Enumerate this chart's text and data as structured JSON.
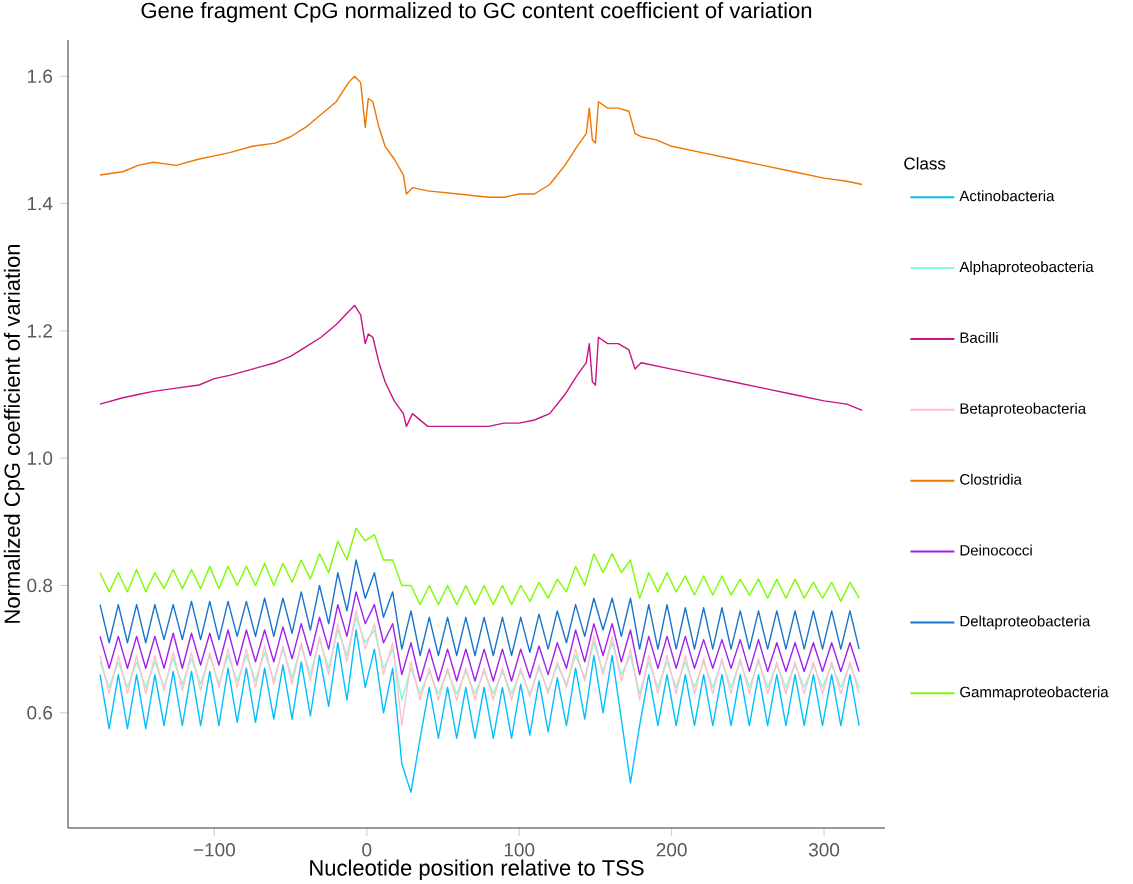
{
  "chart_data": {
    "type": "line",
    "title": "Gene fragment CpG normalized to GC content coefficient of variation",
    "xlabel": "Nucleotide position relative to TSS",
    "ylabel": "Normalized CpG coefficient of variation",
    "legend_title": "Class",
    "legend": "right",
    "line_style": "solid",
    "marker": "none",
    "xlim": [
      -196,
      340
    ],
    "ylim": [
      0.419,
      1.657
    ],
    "xticks": [
      {
        "value": -100,
        "label": "−100"
      },
      0,
      100,
      200,
      300
    ],
    "yticks": [
      0.6,
      0.8,
      {
        "value": 1.0,
        "label": "1.0"
      },
      1.2,
      1.4,
      1.6
    ],
    "x": [
      -175,
      -169,
      -163,
      -157,
      -151,
      -145,
      -139,
      -133,
      -127,
      -121,
      -115,
      -109,
      -103,
      -97,
      -91,
      -85,
      -79,
      -73,
      -67,
      -61,
      -55,
      -49,
      -43,
      -37,
      -31,
      -25,
      -19,
      -13,
      -7,
      -1,
      5,
      11,
      17,
      23,
      29,
      35,
      41,
      47,
      53,
      59,
      65,
      71,
      77,
      83,
      89,
      95,
      101,
      107,
      113,
      119,
      125,
      131,
      137,
      143,
      149,
      155,
      161,
      167,
      173,
      179,
      185,
      191,
      197,
      203,
      209,
      215,
      221,
      227,
      233,
      239,
      245,
      251,
      257,
      263,
      269,
      275,
      281,
      287,
      293,
      299,
      305,
      311,
      317,
      323
    ],
    "series": [
      {
        "name": "Actinobacteria",
        "color": "#00bfff",
        "values": [
          0.66,
          0.575,
          0.66,
          0.575,
          0.66,
          0.575,
          0.66,
          0.58,
          0.665,
          0.58,
          0.665,
          0.58,
          0.665,
          0.58,
          0.67,
          0.585,
          0.67,
          0.585,
          0.67,
          0.59,
          0.675,
          0.59,
          0.68,
          0.595,
          0.69,
          0.61,
          0.71,
          0.62,
          0.73,
          0.64,
          0.7,
          0.6,
          0.67,
          0.52,
          0.475,
          0.56,
          0.64,
          0.56,
          0.64,
          0.56,
          0.64,
          0.56,
          0.64,
          0.56,
          0.64,
          0.56,
          0.645,
          0.565,
          0.65,
          0.57,
          0.655,
          0.58,
          0.67,
          0.59,
          0.69,
          0.6,
          0.69,
          0.59,
          0.49,
          0.58,
          0.66,
          0.58,
          0.66,
          0.58,
          0.66,
          0.58,
          0.66,
          0.58,
          0.66,
          0.58,
          0.66,
          0.58,
          0.66,
          0.58,
          0.66,
          0.58,
          0.66,
          0.58,
          0.66,
          0.58,
          0.66,
          0.58,
          0.66,
          0.58
        ]
      },
      {
        "name": "Alphaproteobacteria",
        "color": "#7fffd4",
        "values": [
          0.68,
          0.64,
          0.68,
          0.64,
          0.68,
          0.64,
          0.68,
          0.64,
          0.685,
          0.645,
          0.685,
          0.645,
          0.69,
          0.645,
          0.69,
          0.65,
          0.69,
          0.65,
          0.695,
          0.65,
          0.7,
          0.655,
          0.705,
          0.66,
          0.715,
          0.67,
          0.73,
          0.69,
          0.75,
          0.71,
          0.73,
          0.67,
          0.7,
          0.62,
          0.67,
          0.63,
          0.665,
          0.63,
          0.665,
          0.63,
          0.665,
          0.63,
          0.665,
          0.63,
          0.665,
          0.63,
          0.665,
          0.63,
          0.67,
          0.635,
          0.675,
          0.645,
          0.69,
          0.655,
          0.71,
          0.665,
          0.71,
          0.66,
          0.69,
          0.63,
          0.68,
          0.64,
          0.68,
          0.64,
          0.68,
          0.64,
          0.68,
          0.64,
          0.68,
          0.64,
          0.68,
          0.64,
          0.68,
          0.64,
          0.675,
          0.64,
          0.675,
          0.64,
          0.675,
          0.64,
          0.675,
          0.64,
          0.675,
          0.64
        ]
      },
      {
        "name": "Bacilli",
        "color": "#c71585",
        "x": [
          -175,
          -160,
          -150,
          -140,
          -125,
          -110,
          -100,
          -90,
          -75,
          -60,
          -50,
          -40,
          -30,
          -20,
          -12,
          -8,
          -4,
          -1,
          1,
          4,
          8,
          12,
          18,
          24,
          26,
          30,
          40,
          60,
          80,
          90,
          100,
          110,
          120,
          130,
          138,
          144,
          146,
          148,
          150,
          152,
          158,
          165,
          172,
          176,
          180,
          190,
          200,
          220,
          240,
          260,
          280,
          300,
          315,
          325
        ],
        "values": [
          1.085,
          1.095,
          1.1,
          1.105,
          1.11,
          1.115,
          1.125,
          1.13,
          1.14,
          1.15,
          1.16,
          1.175,
          1.19,
          1.21,
          1.23,
          1.24,
          1.225,
          1.18,
          1.195,
          1.19,
          1.15,
          1.12,
          1.09,
          1.07,
          1.05,
          1.07,
          1.05,
          1.05,
          1.05,
          1.055,
          1.055,
          1.06,
          1.07,
          1.1,
          1.13,
          1.15,
          1.18,
          1.12,
          1.115,
          1.19,
          1.18,
          1.18,
          1.17,
          1.14,
          1.15,
          1.145,
          1.14,
          1.13,
          1.12,
          1.11,
          1.1,
          1.09,
          1.085,
          1.075
        ]
      },
      {
        "name": "Betaproteobacteria",
        "color": "#ffc0cb",
        "values": [
          0.69,
          0.63,
          0.69,
          0.63,
          0.69,
          0.63,
          0.69,
          0.635,
          0.695,
          0.635,
          0.695,
          0.635,
          0.695,
          0.64,
          0.7,
          0.64,
          0.7,
          0.64,
          0.705,
          0.645,
          0.705,
          0.645,
          0.71,
          0.65,
          0.72,
          0.66,
          0.74,
          0.68,
          0.76,
          0.7,
          0.74,
          0.66,
          0.71,
          0.58,
          0.68,
          0.62,
          0.67,
          0.62,
          0.67,
          0.62,
          0.67,
          0.62,
          0.67,
          0.62,
          0.67,
          0.62,
          0.67,
          0.625,
          0.675,
          0.63,
          0.68,
          0.64,
          0.7,
          0.65,
          0.72,
          0.66,
          0.72,
          0.65,
          0.7,
          0.62,
          0.69,
          0.63,
          0.69,
          0.63,
          0.69,
          0.63,
          0.685,
          0.63,
          0.685,
          0.63,
          0.685,
          0.63,
          0.685,
          0.63,
          0.68,
          0.63,
          0.68,
          0.63,
          0.68,
          0.63,
          0.68,
          0.63,
          0.68,
          0.63
        ]
      },
      {
        "name": "Clostridia",
        "color": "#ee7600",
        "x": [
          -175,
          -160,
          -150,
          -140,
          -125,
          -110,
          -100,
          -90,
          -75,
          -60,
          -50,
          -40,
          -30,
          -20,
          -12,
          -8,
          -4,
          -1,
          1,
          4,
          8,
          12,
          18,
          24,
          26,
          30,
          40,
          60,
          80,
          90,
          100,
          110,
          120,
          130,
          138,
          144,
          146,
          148,
          150,
          152,
          158,
          165,
          172,
          176,
          180,
          190,
          200,
          220,
          240,
          260,
          280,
          300,
          315,
          325
        ],
        "values": [
          1.445,
          1.45,
          1.46,
          1.465,
          1.46,
          1.47,
          1.475,
          1.48,
          1.49,
          1.495,
          1.505,
          1.52,
          1.54,
          1.56,
          1.59,
          1.6,
          1.59,
          1.52,
          1.565,
          1.56,
          1.52,
          1.49,
          1.47,
          1.445,
          1.415,
          1.425,
          1.42,
          1.415,
          1.41,
          1.41,
          1.415,
          1.415,
          1.43,
          1.46,
          1.49,
          1.51,
          1.55,
          1.5,
          1.495,
          1.56,
          1.55,
          1.55,
          1.545,
          1.51,
          1.505,
          1.5,
          1.49,
          1.48,
          1.47,
          1.46,
          1.45,
          1.44,
          1.435,
          1.43
        ]
      },
      {
        "name": "Deinococci",
        "color": "#a020f0",
        "values": [
          0.72,
          0.67,
          0.72,
          0.67,
          0.72,
          0.67,
          0.72,
          0.67,
          0.725,
          0.67,
          0.725,
          0.675,
          0.725,
          0.675,
          0.73,
          0.675,
          0.73,
          0.68,
          0.73,
          0.68,
          0.735,
          0.685,
          0.74,
          0.69,
          0.75,
          0.7,
          0.77,
          0.72,
          0.79,
          0.74,
          0.77,
          0.71,
          0.74,
          0.66,
          0.71,
          0.65,
          0.7,
          0.65,
          0.7,
          0.65,
          0.7,
          0.65,
          0.7,
          0.65,
          0.7,
          0.65,
          0.7,
          0.655,
          0.705,
          0.66,
          0.71,
          0.67,
          0.73,
          0.68,
          0.74,
          0.69,
          0.74,
          0.68,
          0.73,
          0.66,
          0.72,
          0.67,
          0.72,
          0.67,
          0.72,
          0.67,
          0.715,
          0.67,
          0.715,
          0.67,
          0.715,
          0.665,
          0.715,
          0.665,
          0.71,
          0.665,
          0.71,
          0.665,
          0.71,
          0.665,
          0.71,
          0.665,
          0.71,
          0.665
        ]
      },
      {
        "name": "Deltaproteobacteria",
        "color": "#1874cd",
        "values": [
          0.77,
          0.71,
          0.77,
          0.71,
          0.77,
          0.71,
          0.77,
          0.715,
          0.77,
          0.715,
          0.775,
          0.715,
          0.775,
          0.715,
          0.775,
          0.72,
          0.775,
          0.72,
          0.78,
          0.72,
          0.78,
          0.725,
          0.79,
          0.73,
          0.8,
          0.74,
          0.82,
          0.76,
          0.84,
          0.78,
          0.82,
          0.75,
          0.79,
          0.7,
          0.76,
          0.69,
          0.75,
          0.69,
          0.75,
          0.69,
          0.75,
          0.69,
          0.75,
          0.69,
          0.75,
          0.69,
          0.75,
          0.695,
          0.755,
          0.7,
          0.76,
          0.71,
          0.77,
          0.72,
          0.78,
          0.73,
          0.78,
          0.72,
          0.78,
          0.7,
          0.77,
          0.7,
          0.77,
          0.7,
          0.765,
          0.7,
          0.765,
          0.7,
          0.765,
          0.7,
          0.76,
          0.7,
          0.76,
          0.7,
          0.76,
          0.7,
          0.76,
          0.7,
          0.76,
          0.7,
          0.76,
          0.7,
          0.76,
          0.7
        ]
      },
      {
        "name": "Gammaproteobacteria",
        "color": "#7cfc00",
        "values": [
          0.82,
          0.79,
          0.82,
          0.79,
          0.825,
          0.79,
          0.82,
          0.795,
          0.825,
          0.795,
          0.825,
          0.795,
          0.83,
          0.795,
          0.83,
          0.8,
          0.83,
          0.8,
          0.835,
          0.8,
          0.835,
          0.805,
          0.84,
          0.81,
          0.85,
          0.82,
          0.87,
          0.84,
          0.89,
          0.87,
          0.88,
          0.84,
          0.84,
          0.8,
          0.8,
          0.77,
          0.8,
          0.77,
          0.8,
          0.77,
          0.8,
          0.77,
          0.8,
          0.77,
          0.8,
          0.77,
          0.8,
          0.775,
          0.805,
          0.78,
          0.81,
          0.79,
          0.83,
          0.8,
          0.85,
          0.82,
          0.85,
          0.82,
          0.84,
          0.78,
          0.82,
          0.79,
          0.82,
          0.79,
          0.815,
          0.785,
          0.815,
          0.785,
          0.815,
          0.785,
          0.81,
          0.785,
          0.81,
          0.78,
          0.81,
          0.78,
          0.81,
          0.78,
          0.805,
          0.78,
          0.805,
          0.775,
          0.805,
          0.78
        ]
      }
    ]
  }
}
